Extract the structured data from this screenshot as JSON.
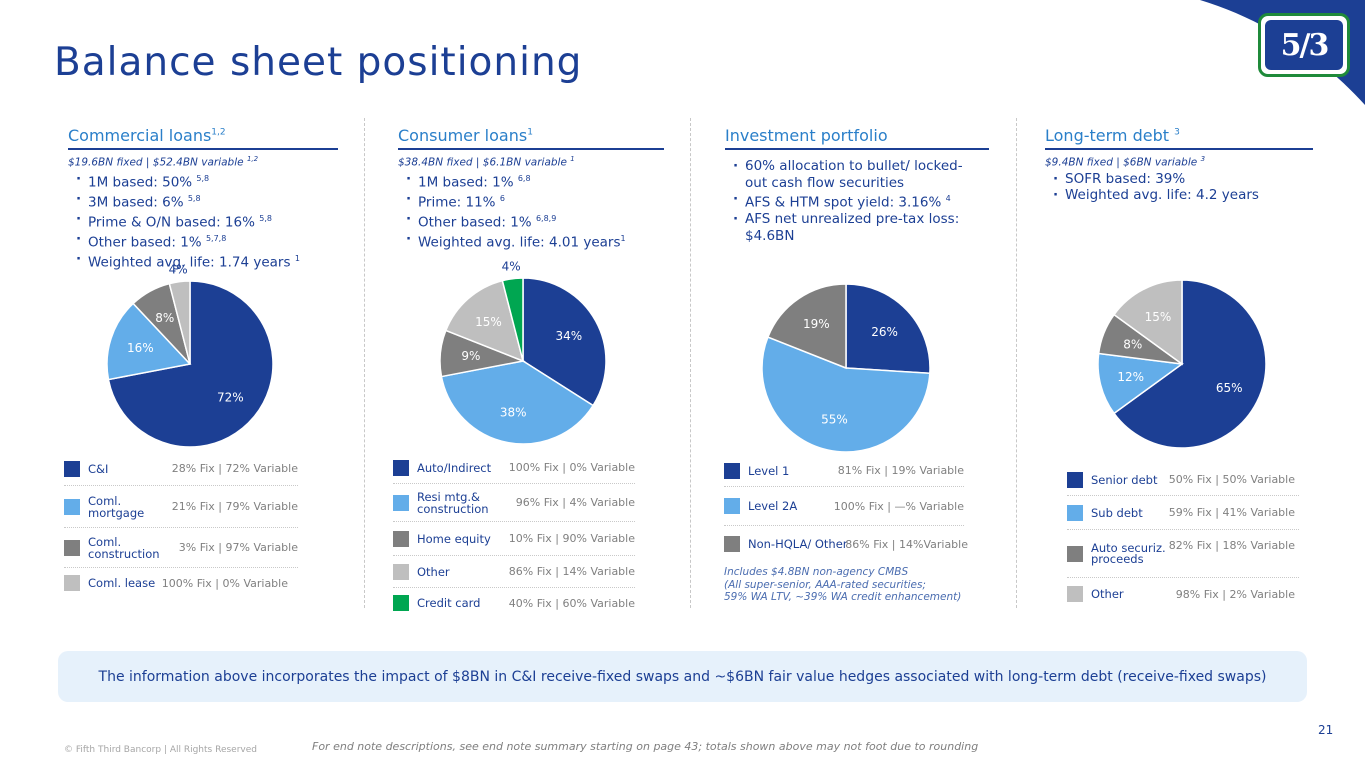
{
  "page": {
    "title": "Balance sheet positioning",
    "banner": "The information above incorporates the impact of $8BN in C&I receive-fixed swaps and ~$6BN fair value hedges associated with long-term debt (receive-fixed swaps)",
    "copyright": "© Fifth Third Bancorp | All Rights Reserved",
    "footnote": "For end note descriptions, see end note summary starting on page 43; totals shown above may not foot due to rounding",
    "page_number": "21",
    "logo_text": "5/3"
  },
  "colors": {
    "navy": "#1c3f94",
    "light_blue": "#63ade9",
    "dark_gray": "#7f7f7f",
    "light_gray": "#bfbfbf",
    "green": "#00a651"
  },
  "commercial": {
    "title": "Commercial loans",
    "title_sup": "1,2",
    "subhead": "$19.6BN fixed | $52.4BN variable",
    "subhead_sup": "1,2",
    "bullets": [
      {
        "text": "1M based: 50%",
        "sup": "5,8"
      },
      {
        "text": "3M based: 6%",
        "sup": "5,8"
      },
      {
        "text": "Prime & O/N based: 16%",
        "sup": "5,8"
      },
      {
        "text": "Other based: 1%",
        "sup": "5,7,8"
      },
      {
        "text": "Weighted avg. life: 1.74 years",
        "sup": "1"
      }
    ],
    "legend": [
      {
        "name": "C&I",
        "value": "28% Fix | 72% Variable"
      },
      {
        "name": "Coml. mortgage",
        "value": "21% Fix | 79% Variable"
      },
      {
        "name": "Coml. construction",
        "value": "3% Fix | 97% Variable"
      },
      {
        "name": "Coml. lease",
        "value": "100% Fix | 0% Variable"
      }
    ]
  },
  "consumer": {
    "title": "Consumer loans",
    "title_sup": "1",
    "subhead": "$38.4BN fixed | $6.1BN variable",
    "subhead_sup": "1",
    "bullets": [
      {
        "text": "1M based: 1%",
        "sup": "6,8"
      },
      {
        "text": "Prime: 11%",
        "sup": "6"
      },
      {
        "text": "Other based: 1%",
        "sup": "6,8,9"
      },
      {
        "text": "Weighted avg. life: 4.01 years",
        "sup": "1"
      }
    ],
    "legend": [
      {
        "name": "Auto/Indirect",
        "value": "100% Fix | 0% Variable"
      },
      {
        "name": "Resi mtg.& construction",
        "value": "96% Fix | 4% Variable"
      },
      {
        "name": "Home equity",
        "value": "10% Fix | 90% Variable"
      },
      {
        "name": "Other",
        "value": "86% Fix | 14% Variable"
      },
      {
        "name": "Credit card",
        "value": "40% Fix | 60% Variable"
      }
    ]
  },
  "investment": {
    "title": "Investment portfolio",
    "bullets": [
      {
        "text": "60% allocation to bullet/ locked-out cash flow securities",
        "sup": ""
      },
      {
        "text": "AFS & HTM spot yield: 3.16%",
        "sup": "4"
      },
      {
        "text": "AFS net unrealized pre-tax loss: $4.6BN",
        "sup": ""
      }
    ],
    "legend": [
      {
        "name": "Level 1",
        "value": "81% Fix | 19% Variable"
      },
      {
        "name": "Level 2A",
        "value": "100% Fix | —% Variable"
      },
      {
        "name": "Non-HQLA/ Other",
        "value": "86% Fix | 14%Variable"
      }
    ],
    "note_lines": [
      "Includes $4.8BN non-agency CMBS",
      "(All super-senior, AAA-rated securities;",
      "59% WA LTV, ~39% WA credit enhancement)"
    ]
  },
  "debt": {
    "title": "Long-term debt",
    "title_sup": "3",
    "subhead": "$9.4BN fixed | $6BN variable",
    "subhead_sup": "3",
    "bullets": [
      {
        "text": "SOFR based: 39%",
        "sup": ""
      },
      {
        "text": "Weighted avg. life: 4.2 years",
        "sup": ""
      }
    ],
    "legend": [
      {
        "name": "Senior debt",
        "value": "50% Fix | 50% Variable"
      },
      {
        "name": "Sub debt",
        "value": "59% Fix | 41% Variable"
      },
      {
        "name": "Auto securiz. proceeds",
        "value": "82% Fix | 18% Variable"
      },
      {
        "name": "Other",
        "value": "98% Fix | 2% Variable"
      }
    ]
  },
  "chart_data": [
    {
      "type": "pie",
      "title": "Commercial loans",
      "start": "12 o'clock, clockwise",
      "slices": [
        {
          "label": "C&I",
          "value": 72,
          "display": "72%",
          "color": "#1c3f94",
          "text_color": "#ffffff"
        },
        {
          "label": "Coml. mortgage",
          "value": 16,
          "display": "16%",
          "color": "#63ade9",
          "text_color": "#ffffff"
        },
        {
          "label": "Coml. construction",
          "value": 8,
          "display": "8%",
          "color": "#7f7f7f",
          "text_color": "#ffffff"
        },
        {
          "label": "Coml. lease",
          "value": 4,
          "display": "4%",
          "color": "#bfbfbf",
          "text_color": "#1c3f94",
          "outside": true
        }
      ]
    },
    {
      "type": "pie",
      "title": "Consumer loans",
      "start": "12 o'clock, clockwise",
      "slices": [
        {
          "label": "Auto/Indirect",
          "value": 34,
          "display": "34%",
          "color": "#1c3f94",
          "text_color": "#ffffff"
        },
        {
          "label": "Resi mtg.& construction",
          "value": 38,
          "display": "38%",
          "color": "#63ade9",
          "text_color": "#ffffff"
        },
        {
          "label": "Home equity",
          "value": 9,
          "display": "9%",
          "color": "#7f7f7f",
          "text_color": "#ffffff"
        },
        {
          "label": "Other",
          "value": 15,
          "display": "15%",
          "color": "#bfbfbf",
          "text_color": "#ffffff"
        },
        {
          "label": "Credit card",
          "value": 4,
          "display": "4%",
          "color": "#00a651",
          "text_color": "#1c3f94",
          "outside": true
        }
      ]
    },
    {
      "type": "pie",
      "title": "Investment portfolio",
      "start": "12 o'clock, clockwise",
      "slices": [
        {
          "label": "Level 1",
          "value": 26,
          "display": "26%",
          "color": "#1c3f94",
          "text_color": "#ffffff"
        },
        {
          "label": "Level 2A",
          "value": 55,
          "display": "55%",
          "color": "#63ade9",
          "text_color": "#ffffff"
        },
        {
          "label": "Non-HQLA/ Other",
          "value": 19,
          "display": "19%",
          "color": "#7f7f7f",
          "text_color": "#ffffff"
        }
      ]
    },
    {
      "type": "pie",
      "title": "Long-term debt",
      "start": "12 o'clock, clockwise",
      "slices": [
        {
          "label": "Senior debt",
          "value": 65,
          "display": "65%",
          "color": "#1c3f94",
          "text_color": "#ffffff"
        },
        {
          "label": "Sub debt",
          "value": 12,
          "display": "12%",
          "color": "#63ade9",
          "text_color": "#ffffff"
        },
        {
          "label": "Auto securiz. proceeds",
          "value": 8,
          "display": "8%",
          "color": "#7f7f7f",
          "text_color": "#ffffff"
        },
        {
          "label": "Other",
          "value": 15,
          "display": "15%",
          "color": "#bfbfbf",
          "text_color": "#ffffff"
        }
      ]
    }
  ]
}
